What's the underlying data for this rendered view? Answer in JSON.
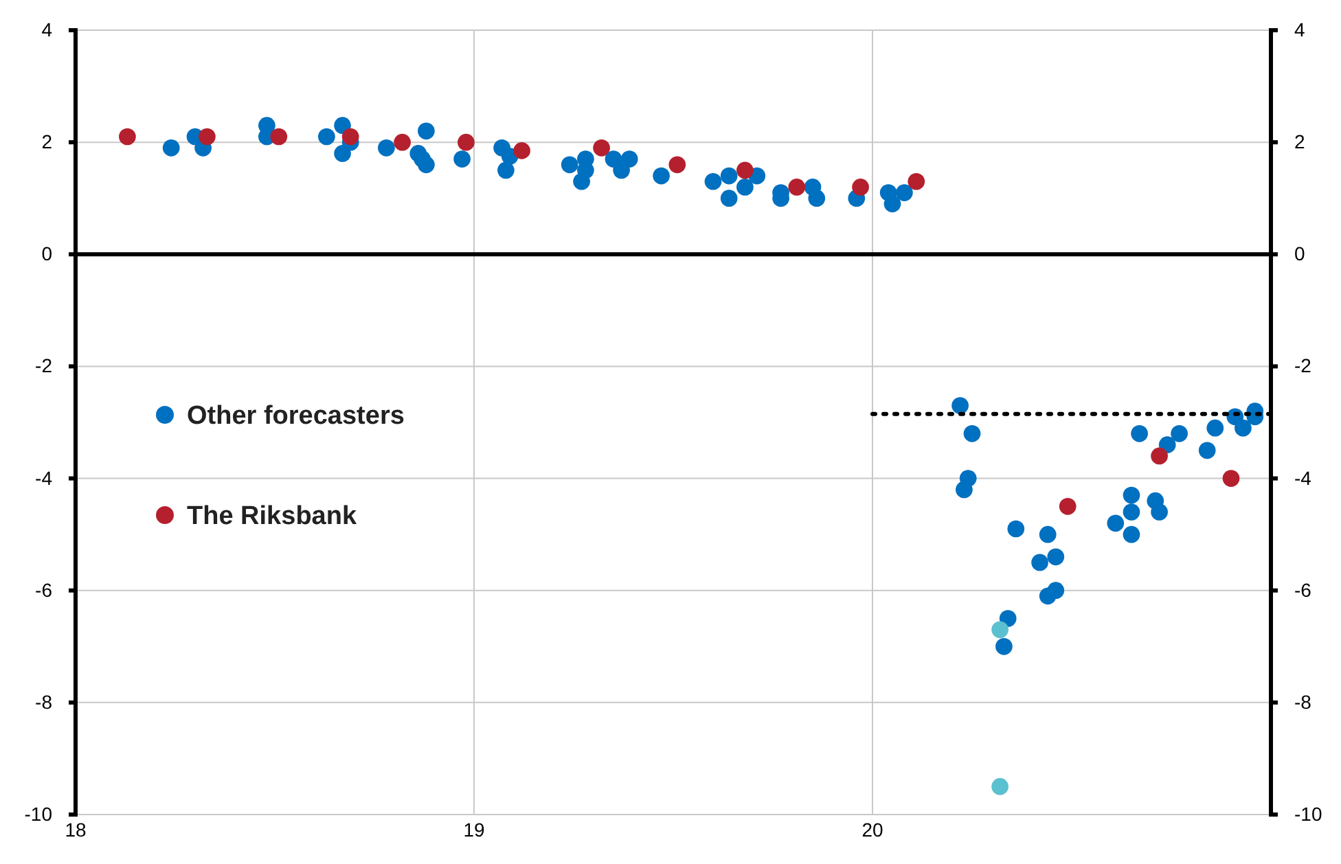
{
  "chart_data": {
    "type": "scatter",
    "xlim": [
      18,
      21
    ],
    "xticks": [
      18,
      19,
      20
    ],
    "ylim": [
      -10,
      4
    ],
    "yticks": [
      -10,
      -8,
      -6,
      -4,
      -2,
      0,
      2,
      4
    ],
    "y2lim": [
      -10,
      4
    ],
    "y2ticks": [
      -10,
      -8,
      -6,
      -4,
      -2,
      0,
      2,
      4
    ],
    "grid": true,
    "legend": "left",
    "marker": "circle",
    "series": [
      {
        "name": "Other forecasters",
        "color": "#0070c0",
        "x": [
          18.24,
          18.3,
          18.32,
          18.48,
          18.48,
          18.63,
          18.67,
          18.69,
          18.67,
          18.78,
          18.86,
          18.88,
          18.87,
          18.88,
          18.97,
          19.07,
          19.09,
          19.08,
          19.24,
          19.28,
          19.28,
          19.27,
          19.35,
          19.39,
          19.37,
          19.47,
          19.6,
          19.64,
          19.68,
          19.64,
          19.71,
          19.77,
          19.77,
          19.85,
          19.86,
          19.96,
          20.04,
          20.08,
          20.05,
          20.22,
          20.25,
          20.24,
          20.23,
          20.36,
          20.44,
          20.42,
          20.46,
          20.65,
          20.65,
          20.61,
          20.65,
          20.67,
          20.71,
          20.72,
          20.74,
          20.77,
          20.84,
          20.86,
          20.91,
          20.93,
          20.96,
          20.96,
          20.44,
          20.46,
          20.34,
          20.33
        ],
        "values": [
          1.9,
          2.1,
          1.9,
          2.3,
          2.1,
          2.1,
          2.3,
          2.0,
          1.8,
          1.9,
          1.8,
          2.2,
          1.7,
          1.6,
          1.7,
          1.9,
          1.75,
          1.5,
          1.6,
          1.7,
          1.5,
          1.3,
          1.7,
          1.7,
          1.5,
          1.4,
          1.3,
          1.4,
          1.2,
          1.0,
          1.4,
          1.1,
          1.0,
          1.2,
          1.0,
          1.0,
          1.1,
          1.1,
          0.9,
          -2.7,
          -3.2,
          -4.0,
          -4.2,
          -4.9,
          -5.0,
          -5.5,
          -5.4,
          -4.3,
          -4.6,
          -4.8,
          -5.0,
          -3.2,
          -4.4,
          -4.6,
          -3.4,
          -3.2,
          -3.5,
          -3.1,
          -2.9,
          -3.1,
          -2.8,
          -2.9,
          -6.1,
          -6.0,
          -6.5,
          -7.0
        ]
      },
      {
        "color": "#5bc0d0",
        "x": [
          20.32,
          20.32
        ],
        "values": [
          -6.7,
          -9.5
        ]
      },
      {
        "name": "The Riksbank",
        "color": "#b5202e",
        "x": [
          18.13,
          18.33,
          18.51,
          18.69,
          18.82,
          18.98,
          19.12,
          19.32,
          19.51,
          19.68,
          19.81,
          19.97,
          20.11,
          20.49,
          20.72,
          20.9
        ],
        "values": [
          2.1,
          2.1,
          2.1,
          2.1,
          2.0,
          2.0,
          1.85,
          1.9,
          1.6,
          1.5,
          1.2,
          1.2,
          1.3,
          -4.5,
          -3.6,
          -4.0
        ]
      },
      {
        "type": "line",
        "color": "#000000",
        "line_style": "dotted",
        "marker": "none",
        "x": [
          20,
          21
        ],
        "values": [
          -2.85,
          -2.85
        ]
      }
    ]
  }
}
